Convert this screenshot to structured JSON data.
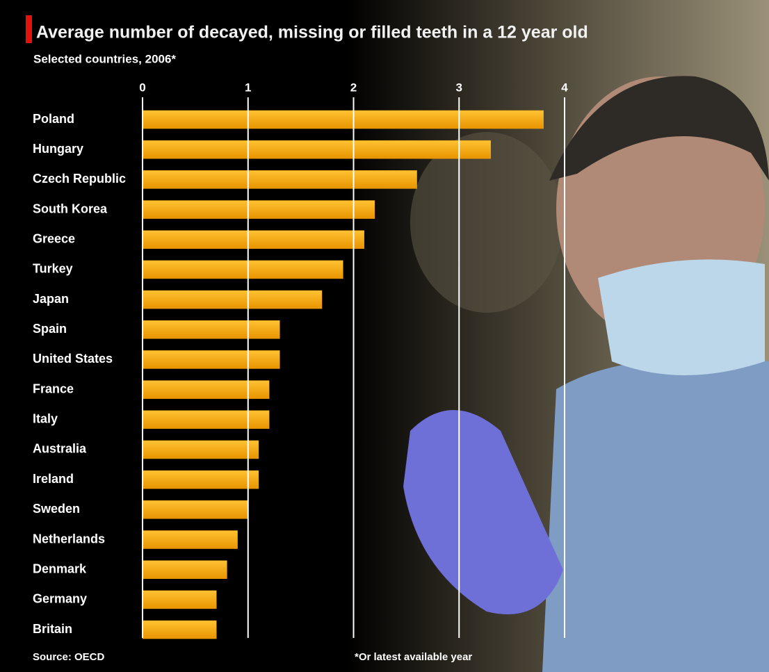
{
  "chart_data": {
    "type": "bar",
    "orientation": "horizontal",
    "title": "Average number of decayed, missing or filled teeth in a 12 year old",
    "subtitle": "Selected countries, 2006*",
    "source": "Source: OECD",
    "note": "*Or latest available year",
    "categories": [
      "Poland",
      "Hungary",
      "Czech Republic",
      "South Korea",
      "Greece",
      "Turkey",
      "Japan",
      "Spain",
      "United States",
      "France",
      "Italy",
      "Australia",
      "Ireland",
      "Sweden",
      "Netherlands",
      "Denmark",
      "Germany",
      "Britain"
    ],
    "values": [
      3.8,
      3.3,
      2.6,
      2.2,
      2.1,
      1.9,
      1.7,
      1.3,
      1.3,
      1.2,
      1.2,
      1.1,
      1.1,
      1.0,
      0.9,
      0.8,
      0.7,
      0.7
    ],
    "color": "#f5a300",
    "xlim": [
      0,
      4
    ],
    "xticks": [
      0,
      1,
      2,
      3,
      4
    ],
    "grid": true
  }
}
